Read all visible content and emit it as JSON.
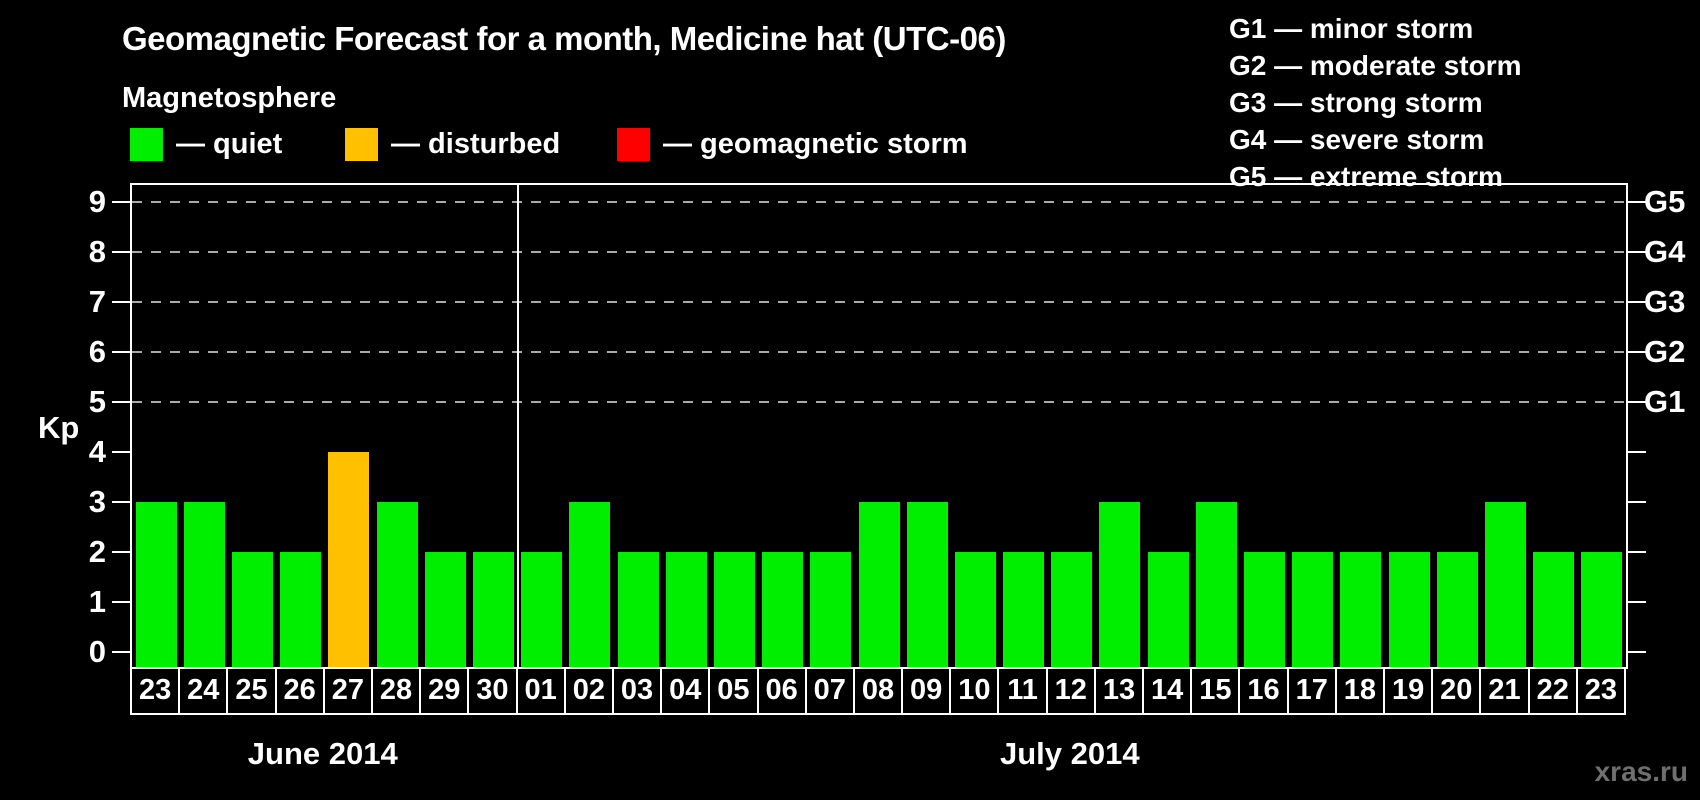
{
  "header": {
    "title": "Geomagnetic Forecast for a month, Medicine hat (UTC-06)",
    "subtitle": "Magnetosphere"
  },
  "legend": {
    "items": [
      {
        "key": "quiet",
        "label": "— quiet",
        "color": "#00ee00"
      },
      {
        "key": "disturbed",
        "label": "— disturbed",
        "color": "#ffc000"
      },
      {
        "key": "storm",
        "label": "— geomagnetic storm",
        "color": "#ff0000"
      }
    ]
  },
  "g_scale_legend": {
    "lines": [
      "G1 — minor storm",
      "G2 — moderate storm",
      "G3 — strong storm",
      "G4 — severe storm",
      "G5 — extreme storm"
    ]
  },
  "state_colors": {
    "quiet": "#00ee00",
    "disturbed": "#ffc000",
    "storm": "#ff0000"
  },
  "colors": {
    "background": "#000000",
    "axis": "#ffffff",
    "grid": "#aaaaaa",
    "text": "#ffffff",
    "watermark": "#6f6f6f"
  },
  "chart_data": {
    "type": "bar",
    "title": "Geomagnetic Forecast for a month, Medicine hat (UTC-06)",
    "xlabel": "",
    "ylabel": "Kp",
    "ylim": [
      0,
      9
    ],
    "yticks": [
      0,
      1,
      2,
      3,
      4,
      5,
      6,
      7,
      8,
      9
    ],
    "gridlines_at": [
      5,
      6,
      7,
      8,
      9
    ],
    "grid": "dashed horizontal at Kp 5-9 only",
    "legend_position": "top",
    "right_axis_labels": [
      {
        "kp": 5,
        "label": "G1"
      },
      {
        "kp": 6,
        "label": "G2"
      },
      {
        "kp": 7,
        "label": "G3"
      },
      {
        "kp": 8,
        "label": "G4"
      },
      {
        "kp": 9,
        "label": "G5"
      }
    ],
    "months": [
      {
        "label": "June 2014",
        "days": [
          "23",
          "24",
          "25",
          "26",
          "27",
          "28",
          "29",
          "30"
        ]
      },
      {
        "label": "July 2014",
        "days": [
          "01",
          "02",
          "03",
          "04",
          "05",
          "06",
          "07",
          "08",
          "09",
          "10",
          "11",
          "12",
          "13",
          "14",
          "15",
          "16",
          "17",
          "18",
          "19",
          "20",
          "21",
          "22",
          "23"
        ]
      }
    ],
    "series": [
      {
        "month": "June 2014",
        "day": "23",
        "kp": 3,
        "state": "quiet"
      },
      {
        "month": "June 2014",
        "day": "24",
        "kp": 3,
        "state": "quiet"
      },
      {
        "month": "June 2014",
        "day": "25",
        "kp": 2,
        "state": "quiet"
      },
      {
        "month": "June 2014",
        "day": "26",
        "kp": 2,
        "state": "quiet"
      },
      {
        "month": "June 2014",
        "day": "27",
        "kp": 4,
        "state": "disturbed"
      },
      {
        "month": "June 2014",
        "day": "28",
        "kp": 3,
        "state": "quiet"
      },
      {
        "month": "June 2014",
        "day": "29",
        "kp": 2,
        "state": "quiet"
      },
      {
        "month": "June 2014",
        "day": "30",
        "kp": 2,
        "state": "quiet"
      },
      {
        "month": "July 2014",
        "day": "01",
        "kp": 2,
        "state": "quiet"
      },
      {
        "month": "July 2014",
        "day": "02",
        "kp": 3,
        "state": "quiet"
      },
      {
        "month": "July 2014",
        "day": "03",
        "kp": 2,
        "state": "quiet"
      },
      {
        "month": "July 2014",
        "day": "04",
        "kp": 2,
        "state": "quiet"
      },
      {
        "month": "July 2014",
        "day": "05",
        "kp": 2,
        "state": "quiet"
      },
      {
        "month": "July 2014",
        "day": "06",
        "kp": 2,
        "state": "quiet"
      },
      {
        "month": "July 2014",
        "day": "07",
        "kp": 2,
        "state": "quiet"
      },
      {
        "month": "July 2014",
        "day": "08",
        "kp": 3,
        "state": "quiet"
      },
      {
        "month": "July 2014",
        "day": "09",
        "kp": 3,
        "state": "quiet"
      },
      {
        "month": "July 2014",
        "day": "10",
        "kp": 2,
        "state": "quiet"
      },
      {
        "month": "July 2014",
        "day": "11",
        "kp": 2,
        "state": "quiet"
      },
      {
        "month": "July 2014",
        "day": "12",
        "kp": 2,
        "state": "quiet"
      },
      {
        "month": "July 2014",
        "day": "13",
        "kp": 3,
        "state": "quiet"
      },
      {
        "month": "July 2014",
        "day": "14",
        "kp": 2,
        "state": "quiet"
      },
      {
        "month": "July 2014",
        "day": "15",
        "kp": 3,
        "state": "quiet"
      },
      {
        "month": "July 2014",
        "day": "16",
        "kp": 2,
        "state": "quiet"
      },
      {
        "month": "July 2014",
        "day": "17",
        "kp": 2,
        "state": "quiet"
      },
      {
        "month": "July 2014",
        "day": "18",
        "kp": 2,
        "state": "quiet"
      },
      {
        "month": "July 2014",
        "day": "19",
        "kp": 2,
        "state": "quiet"
      },
      {
        "month": "July 2014",
        "day": "20",
        "kp": 2,
        "state": "quiet"
      },
      {
        "month": "July 2014",
        "day": "21",
        "kp": 3,
        "state": "quiet"
      },
      {
        "month": "July 2014",
        "day": "22",
        "kp": 2,
        "state": "quiet"
      },
      {
        "month": "July 2014",
        "day": "23",
        "kp": 2,
        "state": "quiet"
      }
    ]
  },
  "watermark": "xras.ru"
}
